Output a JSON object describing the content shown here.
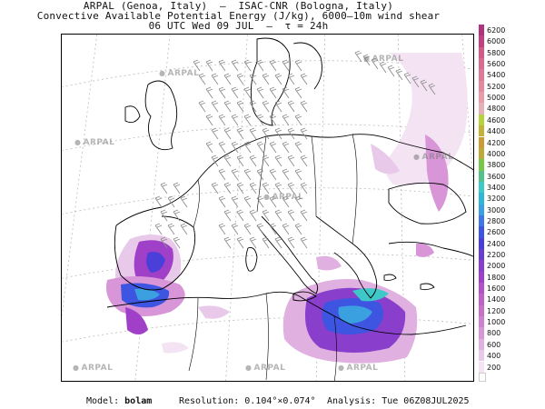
{
  "header": {
    "line1": "ARPAL (Genoa, Italy)  –  ISAC-CNR (Bologna, Italy)",
    "line2": "Convective Available Potential Energy (J/kg), 6000–10m wind shear",
    "line3": "06 UTC Wed 09 JUL  –  τ = 24h"
  },
  "legend": {
    "levels": [
      "6200",
      "6000",
      "5800",
      "5600",
      "5400",
      "5200",
      "5000",
      "4800",
      "4600",
      "4400",
      "4200",
      "4000",
      "3800",
      "3600",
      "3400",
      "3200",
      "3000",
      "2800",
      "2600",
      "2400",
      "2200",
      "2000",
      "1800",
      "1600",
      "1400",
      "1200",
      "1000",
      "800",
      "600",
      "400",
      "200"
    ],
    "colors": [
      "#b0337e",
      "#c2407f",
      "#d15a86",
      "#d86b8f",
      "#de7a97",
      "#e58a9e",
      "#e99ba7",
      "#e6b0b8",
      "#b7d23f",
      "#c2b23a",
      "#cc9a36",
      "#bfa93a",
      "#77c84a",
      "#52c28a",
      "#3ec8c8",
      "#2fb6d9",
      "#3aa0e0",
      "#3f78e5",
      "#3d55e0",
      "#4a3fd8",
      "#6a3fd0",
      "#8a3fcc",
      "#a040c8",
      "#b450c8",
      "#c060c8",
      "#c870c8",
      "#d080d0",
      "#d895d8",
      "#e0b0e0",
      "#e9c9e9",
      "#f3e3f3"
    ]
  },
  "footer": {
    "model_label": "Model:",
    "model": "bolam",
    "resolution_label": "Resolution:",
    "resolution": "0.104°×0.074°",
    "analysis_label": "Analysis:",
    "analysis": "Tue 06Z08JUL2025"
  },
  "watermark": "ARPAL"
}
